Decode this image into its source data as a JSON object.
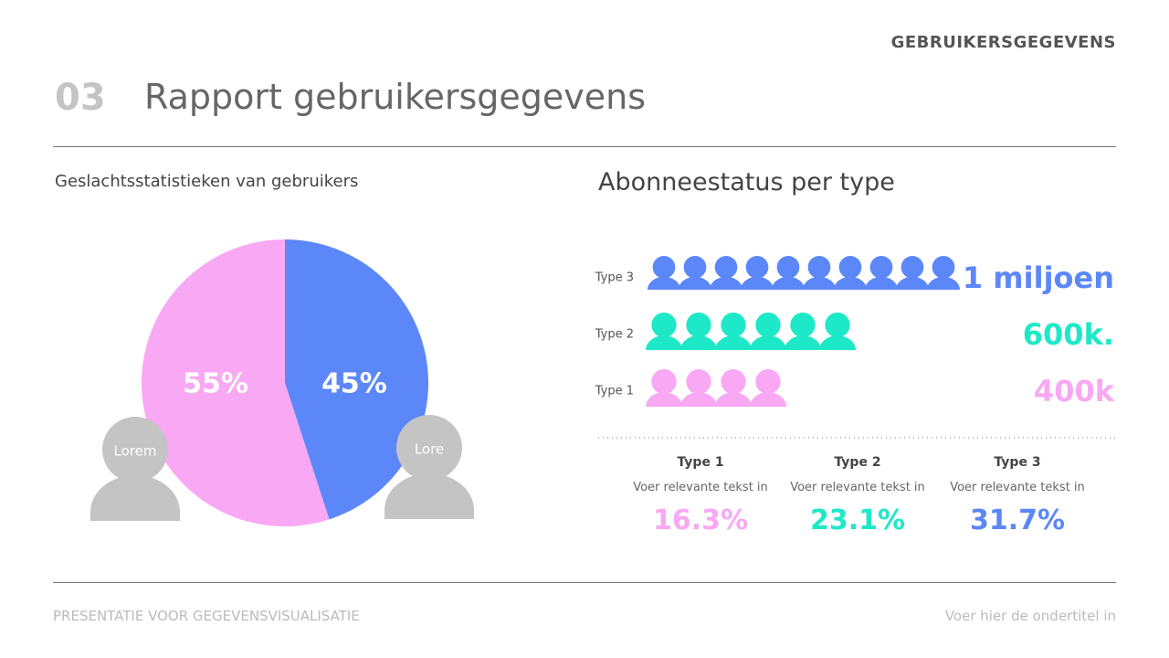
{
  "header": {
    "section": "GEBRUIKERSGEGEVENS",
    "number": "03",
    "title": "Rapport gebruikersgegevens"
  },
  "chart_data": [
    {
      "type": "pie",
      "title": "Geslachtsstatistieken van gebruikers",
      "categories": [
        "Lorem",
        "Lore"
      ],
      "values": [
        55,
        45
      ],
      "value_labels": [
        "55%",
        "45%"
      ],
      "colors": [
        "#f9a8f4",
        "#5b87f8"
      ]
    },
    {
      "type": "pictograph",
      "title": "Abonneestatus per type",
      "categories": [
        "Type 3",
        "Type 2",
        "Type 1"
      ],
      "values": [
        1000000,
        600000,
        400000
      ],
      "value_labels": [
        "1 miljoen",
        "600k.",
        "400k"
      ],
      "icon_value": 100000,
      "colors": [
        "#5b87f8",
        "#1de9c8",
        "#f9a8f4"
      ]
    }
  ],
  "stats": [
    {
      "label": "Type 1",
      "text": "Voer relevante tekst in",
      "value": "16.3%",
      "color": "#f9a8f4"
    },
    {
      "label": "Type 2",
      "text": "Voer relevante tekst in",
      "value": "23.1%",
      "color": "#1de9c8"
    },
    {
      "label": "Type 3",
      "text": "Voer relevante tekst in",
      "value": "31.7%",
      "color": "#5b87f8"
    }
  ],
  "footer": {
    "left": "PRESENTATIE VOOR GEGEVENSVISUALISATIE",
    "right": "Voer hier de ondertitel in"
  }
}
